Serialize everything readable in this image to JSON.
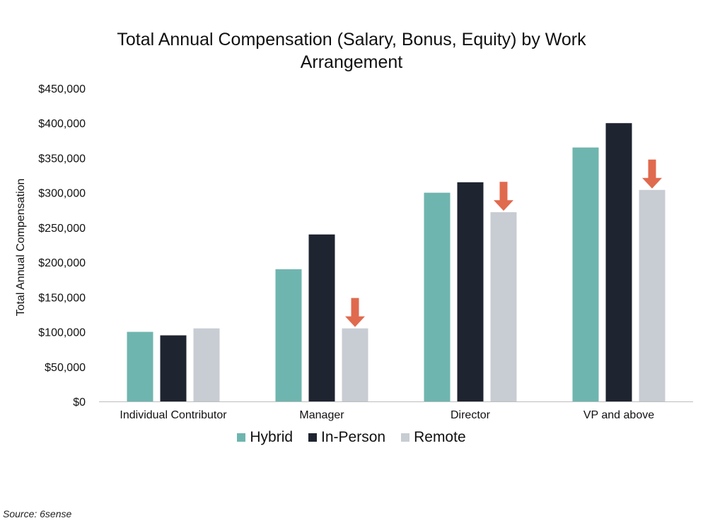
{
  "chart_data": {
    "type": "bar",
    "title_line1": "Total Annual Compensation (Salary, Bonus, Equity) by Work",
    "title_line2": "Arrangement",
    "ylabel": "Total Annual Compensation",
    "xlabel": "",
    "categories": [
      "Individual Contributor",
      "Manager",
      "Director",
      "VP and above"
    ],
    "series": [
      {
        "name": "Hybrid",
        "color": "#6fb5af",
        "values": [
          100000,
          190000,
          300000,
          365000
        ]
      },
      {
        "name": "In-Person",
        "color": "#1e2430",
        "values": [
          95000,
          240000,
          315000,
          400000
        ]
      },
      {
        "name": "Remote",
        "color": "#c8ccd3",
        "values": [
          105000,
          105000,
          272000,
          304000
        ]
      }
    ],
    "ylim": [
      0,
      450000
    ],
    "yticks": [
      "$0",
      "$50,000",
      "$100,000",
      "$150,000",
      "$200,000",
      "$250,000",
      "$300,000",
      "$350,000",
      "$400,000",
      "$450,000"
    ],
    "grid": false,
    "legend_position": "bottom",
    "annotations": [
      {
        "type": "down-arrow",
        "category": "Manager",
        "series": "Remote",
        "color": "#e06a4e"
      },
      {
        "type": "down-arrow",
        "category": "Director",
        "series": "Remote",
        "color": "#e06a4e"
      },
      {
        "type": "down-arrow",
        "category": "VP and above",
        "series": "Remote",
        "color": "#e06a4e"
      }
    ]
  },
  "source": "Source: 6sense"
}
